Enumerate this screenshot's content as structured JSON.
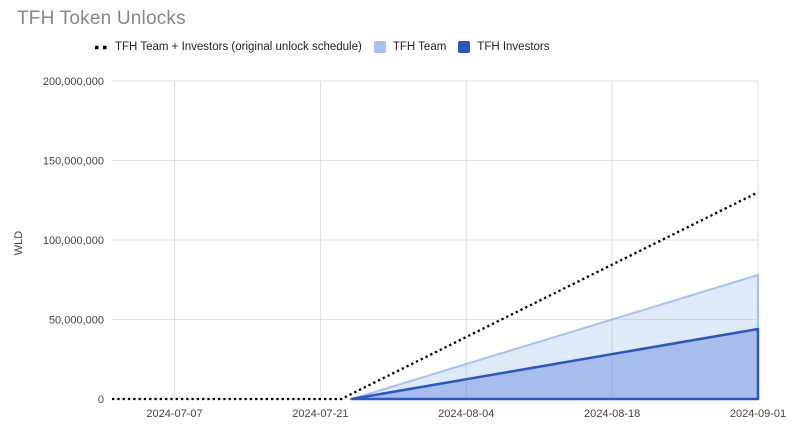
{
  "title": "TFH Token Unlocks",
  "colors": {
    "background": "#ffffff",
    "title_text": "#878787",
    "legend_text": "#212121",
    "axis_text": "#444444",
    "gridline": "#e0e0e0",
    "dotted_black": "#000000",
    "team_blue": "#a4c2f4",
    "investors_blue": "#2a56c6"
  },
  "legend": {
    "items": [
      {
        "label": "TFH Team + Investors (original unlock schedule)",
        "marker": "dotted-line-swatch",
        "color": "#000000"
      },
      {
        "label": "TFH Team",
        "marker": "square-swatch",
        "color": "#a4c2f4"
      },
      {
        "label": "TFH Investors",
        "marker": "square-swatch",
        "color": "#2a56c6"
      }
    ]
  },
  "chart_data": {
    "type": "area",
    "title": "TFH Token Unlocks",
    "xlabel": "",
    "ylabel": "WLD",
    "ylim": [
      0,
      200000000
    ],
    "y_ticks": [
      0,
      50000000,
      100000000,
      150000000,
      200000000
    ],
    "y_tick_labels": [
      "0",
      "50,000,000",
      "100,000,000",
      "150,000,000",
      "200,000,000"
    ],
    "x_range": [
      "2024-07-01",
      "2024-09-01"
    ],
    "x_ticks": [
      "2024-07-07",
      "2024-07-21",
      "2024-08-04",
      "2024-08-18",
      "2024-09-01"
    ],
    "grid": true,
    "legend_position": "top",
    "series": [
      {
        "name": "TFH Team + Investors (original unlock schedule)",
        "style": "dotted-line",
        "color": "#000000",
        "stroke_width": 2.3,
        "points": [
          [
            "2024-07-01",
            0
          ],
          [
            "2024-07-23",
            0
          ],
          [
            "2024-09-01",
            130000000
          ]
        ]
      },
      {
        "name": "TFH Team",
        "style": "area",
        "color": "#a4c2f4",
        "fill_opacity": 0.35,
        "stroke_width": 2,
        "points": [
          [
            "2024-07-24",
            0
          ],
          [
            "2024-09-01",
            78000000
          ]
        ]
      },
      {
        "name": "TFH Investors",
        "style": "area",
        "color": "#2a56c6",
        "fill_opacity": 0.3,
        "stroke_width": 2.5,
        "points": [
          [
            "2024-07-24",
            0
          ],
          [
            "2024-09-01",
            44000000
          ]
        ]
      }
    ]
  }
}
